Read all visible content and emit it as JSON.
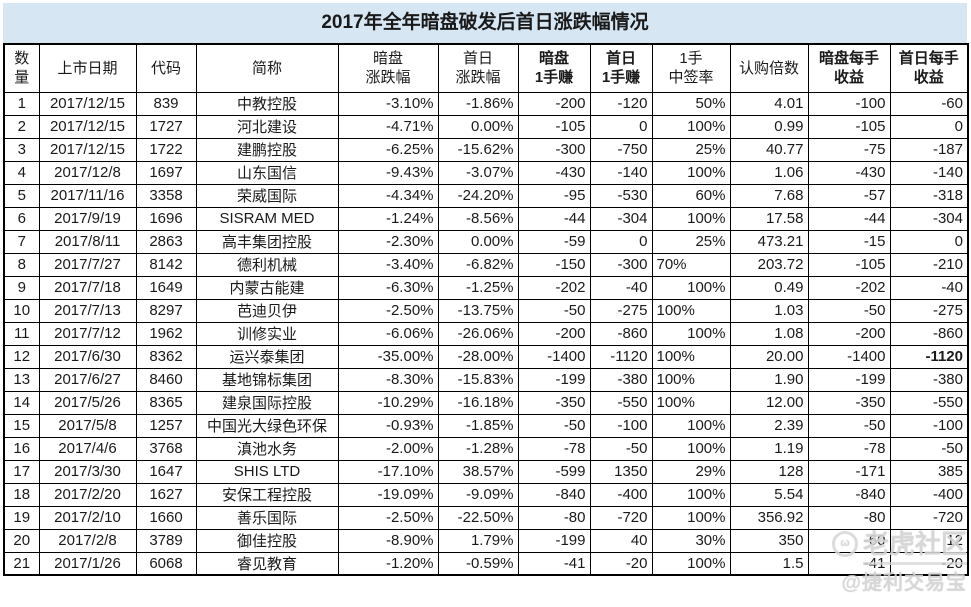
{
  "title": "2017年全年暗盘破发后首日涨跌幅情况",
  "colors": {
    "title_bg": "#d6e6f3",
    "negative_bg": "#c7e1b5",
    "border": "#000000"
  },
  "table": {
    "headers": {
      "no": "数量",
      "date": "上市日期",
      "code": "代码",
      "name": "简称",
      "dark_chg": "暗盘\n涨跌幅",
      "day1_chg": "首日\n涨跌幅",
      "dark_lot": "暗盘\n1手赚",
      "day1_lot": "首日\n1手赚",
      "win_rate": "1手\n中签率",
      "sub_mult": "认购倍数",
      "dark_per": "暗盘每手\n收益",
      "day1_per": "首日每手\n收益"
    },
    "rows": [
      [
        "1",
        "2017/12/15",
        "839",
        "中教控股",
        "-3.10%",
        "-1.86%",
        "-200",
        "-120",
        "50%",
        "4.01",
        "-100",
        "-60"
      ],
      [
        "2",
        "2017/12/15",
        "1727",
        "河北建设",
        "-4.71%",
        "0.00%",
        "-105",
        "0",
        "100%",
        "0.99",
        "-105",
        "0"
      ],
      [
        "3",
        "2017/12/15",
        "1722",
        "建鹏控股",
        "-6.25%",
        "-15.62%",
        "-300",
        "-750",
        "25%",
        "40.77",
        "-75",
        "-187"
      ],
      [
        "4",
        "2017/12/8",
        "1697",
        "山东国信",
        "-9.43%",
        "-3.07%",
        "-430",
        "-140",
        "100%",
        "1.06",
        "-430",
        "-140"
      ],
      [
        "5",
        "2017/11/16",
        "3358",
        "荣威国际",
        "-4.34%",
        "-24.20%",
        "-95",
        "-530",
        "60%",
        "7.68",
        "-57",
        "-318"
      ],
      [
        "6",
        "2017/9/19",
        "1696",
        "SISRAM MED",
        "-1.24%",
        "-8.56%",
        "-44",
        "-304",
        "100%",
        "17.58",
        "-44",
        "-304"
      ],
      [
        "7",
        "2017/8/11",
        "2863",
        "高丰集团控股",
        "-2.30%",
        "0.00%",
        "-59",
        "0",
        "25%",
        "473.21",
        "-15",
        "0"
      ],
      [
        "8",
        "2017/7/27",
        "8142",
        "德利机械",
        "-3.40%",
        "-6.82%",
        "-150",
        "-300",
        "70%",
        "203.72",
        "-105",
        "-210"
      ],
      [
        "9",
        "2017/7/18",
        "1649",
        "内蒙古能建",
        "-6.30%",
        "-1.25%",
        "-202",
        "-40",
        "100%",
        "0.49",
        "-202",
        "-40"
      ],
      [
        "10",
        "2017/7/13",
        "8297",
        "芭迪贝伊",
        "-2.50%",
        "-13.75%",
        "-50",
        "-275",
        "100%",
        "1.03",
        "-50",
        "-275"
      ],
      [
        "11",
        "2017/7/12",
        "1962",
        "训修实业",
        "-6.06%",
        "-26.06%",
        "-200",
        "-860",
        "100%",
        "1.08",
        "-200",
        "-860"
      ],
      [
        "12",
        "2017/6/30",
        "8362",
        "运兴泰集团",
        "-35.00%",
        "-28.00%",
        "-1400",
        "-1120",
        "100%",
        "20.00",
        "-1400",
        "-1120"
      ],
      [
        "13",
        "2017/6/27",
        "8460",
        "基地锦标集团",
        "-8.30%",
        "-15.83%",
        "-199",
        "-380",
        "100%",
        "1.90",
        "-199",
        "-380"
      ],
      [
        "14",
        "2017/5/26",
        "8365",
        "建泉国际控股",
        "-10.29%",
        "-16.18%",
        "-350",
        "-550",
        "100%",
        "12.00",
        "-350",
        "-550"
      ],
      [
        "15",
        "2017/5/8",
        "1257",
        "中国光大绿色环保",
        "-0.93%",
        "-1.85%",
        "-50",
        "-100",
        "100%",
        "2.39",
        "-50",
        "-100"
      ],
      [
        "16",
        "2017/4/6",
        "3768",
        "滇池水务",
        "-2.00%",
        "-1.28%",
        "-78",
        "-50",
        "100%",
        "1.19",
        "-78",
        "-50"
      ],
      [
        "17",
        "2017/3/30",
        "1647",
        "SHIS LTD",
        "-17.10%",
        "38.57%",
        "-599",
        "1350",
        "29%",
        "128",
        "-171",
        "385"
      ],
      [
        "18",
        "2017/2/20",
        "1627",
        "安保工程控股",
        "-19.09%",
        "-9.09%",
        "-840",
        "-400",
        "100%",
        "5.54",
        "-840",
        "-400"
      ],
      [
        "19",
        "2017/2/10",
        "1660",
        "善乐国际",
        "-2.50%",
        "-22.50%",
        "-80",
        "-720",
        "100%",
        "356.92",
        "-80",
        "-720"
      ],
      [
        "20",
        "2017/2/8",
        "3789",
        "御佳控股",
        "-8.90%",
        "1.79%",
        "-199",
        "40",
        "30%",
        "350",
        "-60",
        "12"
      ],
      [
        "21",
        "2017/1/26",
        "6068",
        "睿见教育",
        "-1.20%",
        "-0.59%",
        "-41",
        "-20",
        "100%",
        "1.5",
        "-41",
        "-20"
      ]
    ]
  },
  "watermark": {
    "brand": "老虎社区",
    "handle": "@捷利交易宝"
  }
}
